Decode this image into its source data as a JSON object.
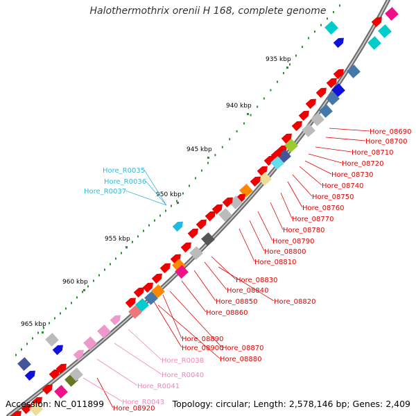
{
  "title": "Halothermothrix orenii H 168, complete genome",
  "footer": {
    "accession": "Accession: NC_011899",
    "summary": "Topology: circular; Length: 2,578,146 bp; Genes: 2,409"
  },
  "colors": {
    "backbone": "#8c8c8c",
    "tick": "#2e8b2e",
    "label_red": "#e00000",
    "label_cyan": "#33b8d8",
    "label_pink": "#ee88bb"
  },
  "scale_ticks": [
    "935 kbp",
    "940 kbp",
    "945 kbp",
    "950 kbp",
    "955 kbp",
    "960 kbp",
    "965 kbp"
  ],
  "gene_labels": {
    "red": [
      "Hore_08690",
      "Hore_08700",
      "Hore_08710",
      "Hore_08720",
      "Hore_08730",
      "Hore_08740",
      "Hore_08750",
      "Hore_08760",
      "Hore_08770",
      "Hore_08780",
      "Hore_08790",
      "Hore_08800",
      "Hore_08810",
      "Hore_08830",
      "Hore_08840",
      "Hore_08820",
      "Hore_08850",
      "Hore_08860",
      "Hore_08890",
      "Hore_08900",
      "Hore_08870",
      "Hore_08880",
      "Hore_08920"
    ],
    "cyan": [
      "Hore_R0035",
      "Hore_R0036",
      "Hore_R0037"
    ],
    "pink": [
      "Hore_R0038",
      "Hore_R0040",
      "Hore_R0041",
      "Hore_R0043"
    ]
  },
  "feature_colors": [
    "#ee0000",
    "#00cccc",
    "#1010dd",
    "#4477aa",
    "#bbbbbb",
    "#ee1188",
    "#ff8800",
    "#eedd99",
    "#99cc33",
    "#445599",
    "#667722",
    "#555555",
    "#ee99cc",
    "#ee7777",
    "#66ddee",
    "#22bbdd"
  ]
}
